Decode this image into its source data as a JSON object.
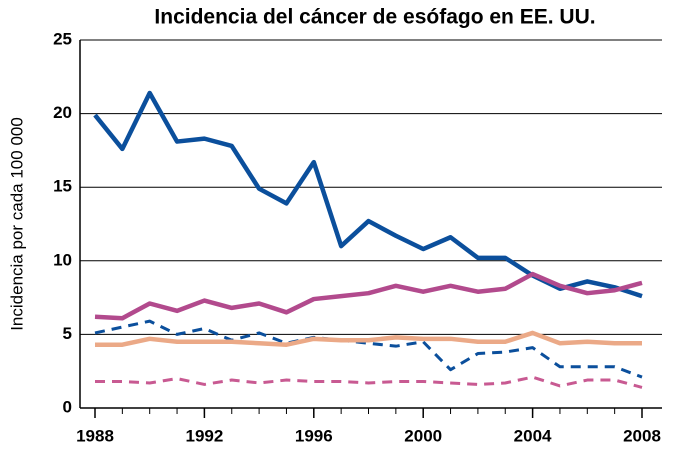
{
  "chart_data": {
    "type": "line",
    "title": "Incidencia del cáncer de esófago en EE. UU.",
    "y_label": "Incidencia por cada 100 000",
    "x": [
      1988,
      1989,
      1990,
      1991,
      1992,
      1993,
      1994,
      1995,
      1996,
      1997,
      1998,
      1999,
      2000,
      2001,
      2002,
      2003,
      2004,
      2005,
      2006,
      2007,
      2008
    ],
    "xlim": [
      1988,
      2008
    ],
    "xticks": [
      1988,
      1992,
      1996,
      2000,
      2004,
      2008
    ],
    "ylim": [
      0,
      25
    ],
    "yticks": [
      0,
      5,
      10,
      15,
      20,
      25
    ],
    "grid": true,
    "series": [
      {
        "color": "#0b4f9c",
        "dashed": false,
        "values": [
          19.9,
          17.6,
          21.4,
          18.1,
          18.3,
          17.8,
          14.9,
          13.9,
          16.7,
          11.0,
          12.7,
          11.7,
          10.8,
          11.6,
          10.2,
          10.2,
          9.0,
          8.1,
          8.6,
          8.2,
          7.6
        ]
      },
      {
        "color": "#b24a8d",
        "dashed": false,
        "values": [
          6.2,
          6.1,
          7.1,
          6.6,
          7.3,
          6.8,
          7.1,
          6.5,
          7.4,
          7.6,
          7.8,
          8.3,
          7.9,
          8.3,
          7.9,
          8.1,
          9.1,
          8.3,
          7.8,
          8.0,
          8.5
        ]
      },
      {
        "color": "#0b4f9c",
        "dashed": true,
        "values": [
          5.1,
          5.5,
          5.9,
          5.0,
          5.4,
          4.6,
          5.1,
          4.4,
          4.8,
          4.6,
          4.4,
          4.2,
          4.5,
          2.6,
          3.7,
          3.8,
          4.1,
          2.8,
          2.8,
          2.8,
          2.1
        ]
      },
      {
        "color": "#eba987",
        "dashed": false,
        "values": [
          4.3,
          4.3,
          4.7,
          4.5,
          4.5,
          4.5,
          4.4,
          4.3,
          4.7,
          4.6,
          4.6,
          4.8,
          4.7,
          4.7,
          4.5,
          4.5,
          5.1,
          4.4,
          4.5,
          4.4,
          4.4
        ]
      },
      {
        "color": "#c85a92",
        "dashed": true,
        "values": [
          1.8,
          1.8,
          1.7,
          2.0,
          1.6,
          1.9,
          1.7,
          1.9,
          1.8,
          1.8,
          1.7,
          1.8,
          1.8,
          1.7,
          1.6,
          1.7,
          2.1,
          1.5,
          1.9,
          1.9,
          1.4
        ]
      }
    ]
  }
}
